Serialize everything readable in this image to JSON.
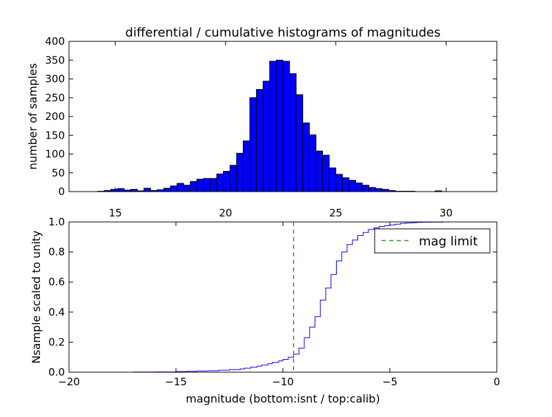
{
  "chart_data": [
    {
      "type": "bar",
      "title": "differential / cumulative histograms of magnitudes",
      "xlabel": "",
      "ylabel": "number of samples",
      "xlim": [
        12.9,
        32.3
      ],
      "ylim": [
        0,
        400
      ],
      "xticks": [
        15,
        20,
        25,
        30
      ],
      "yticks": [
        0,
        50,
        100,
        150,
        200,
        250,
        300,
        350,
        400
      ],
      "xtick_position": "top",
      "bar_color": "#0000ff",
      "bin_edges": [
        14.2,
        14.5,
        14.8,
        15.1,
        15.4,
        15.7,
        16.0,
        16.3,
        16.6,
        16.9,
        17.2,
        17.5,
        17.8,
        18.1,
        18.4,
        18.7,
        19.0,
        19.3,
        19.6,
        19.9,
        20.2,
        20.5,
        20.8,
        21.1,
        21.4,
        21.7,
        22.0,
        22.3,
        22.6,
        22.9,
        23.2,
        23.5,
        23.8,
        24.1,
        24.4,
        24.7,
        25.0,
        25.3,
        25.6,
        25.9,
        26.2,
        26.5,
        26.8,
        27.1,
        27.4,
        27.7,
        28.0,
        28.3,
        28.6,
        28.9,
        29.2,
        29.5,
        29.8,
        30.1,
        30.4
      ],
      "values": [
        1,
        3,
        6,
        8,
        4,
        6,
        2,
        9,
        3,
        5,
        9,
        15,
        22,
        17,
        27,
        33,
        35,
        35,
        47,
        54,
        70,
        102,
        135,
        250,
        272,
        294,
        347,
        350,
        347,
        314,
        258,
        183,
        151,
        108,
        97,
        63,
        46,
        37,
        30,
        23,
        17,
        11,
        8,
        6,
        3,
        1,
        1,
        1,
        0,
        0,
        0,
        2,
        0,
        0
      ]
    },
    {
      "type": "line",
      "title": "",
      "xlabel": "magnitude (bottom:isnt / top:calib)",
      "ylabel": "Nsample scaled to unity",
      "xlim": [
        -20,
        0
      ],
      "ylim": [
        0,
        1
      ],
      "xticks": [
        -20,
        -15,
        -10,
        -5,
        0
      ],
      "ytick_labels": [
        "0.0",
        "0.2",
        "0.4",
        "0.6",
        "0.8",
        "1.0"
      ],
      "series": [
        {
          "name": "",
          "style": "steps",
          "color": "#0000ff",
          "x": [
            -20.0,
            -17.0,
            -16.0,
            -15.0,
            -14.5,
            -14.0,
            -13.5,
            -13.0,
            -12.5,
            -12.0,
            -11.8,
            -11.5,
            -11.2,
            -11.0,
            -10.7,
            -10.5,
            -10.2,
            -10.0,
            -9.75,
            -9.5,
            -9.25,
            -9.0,
            -8.75,
            -8.5,
            -8.25,
            -8.0,
            -7.75,
            -7.5,
            -7.25,
            -7.0,
            -6.75,
            -6.5,
            -6.25,
            -6.0,
            -5.75,
            -5.5,
            -5.25,
            -5.0,
            -4.75,
            -4.5,
            -4.25,
            -4.0,
            -3.75,
            -3.5,
            -3.0,
            -2.5,
            -2.0,
            -1.0,
            -0.05,
            0.0
          ],
          "y": [
            0.0,
            0.001,
            0.002,
            0.004,
            0.006,
            0.008,
            0.01,
            0.013,
            0.017,
            0.022,
            0.027,
            0.033,
            0.04,
            0.047,
            0.056,
            0.065,
            0.075,
            0.085,
            0.1,
            0.12,
            0.16,
            0.23,
            0.3,
            0.37,
            0.48,
            0.56,
            0.65,
            0.74,
            0.8,
            0.85,
            0.88,
            0.91,
            0.93,
            0.95,
            0.96,
            0.97,
            0.975,
            0.98,
            0.985,
            0.99,
            0.993,
            0.995,
            0.997,
            0.998,
            0.999,
            1.0,
            1.0,
            1.0,
            1.0,
            0.0
          ]
        },
        {
          "name": "mag limit",
          "style": "dashed-vline",
          "color": "#008000",
          "x_value": -9.5
        }
      ],
      "legend_position": "top-right"
    }
  ]
}
